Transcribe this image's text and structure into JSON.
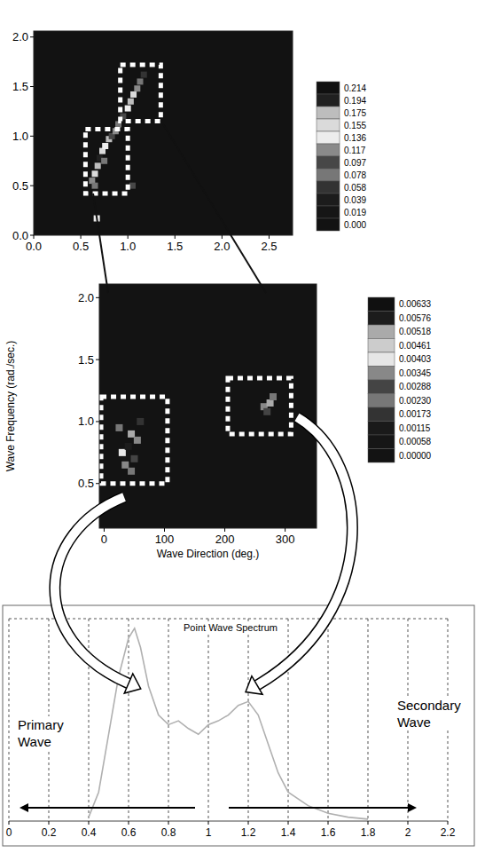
{
  "chart_data": [
    {
      "type": "heatmap",
      "xlim": [
        0,
        2.75
      ],
      "ylim": [
        0,
        2.06
      ],
      "xticks": [
        {
          "value": 0,
          "label": "0.0"
        },
        0.5,
        {
          "value": 1,
          "label": "1.0"
        },
        1.5,
        {
          "value": 2,
          "label": "2.0"
        },
        2.5
      ],
      "yticks": [
        {
          "value": 0,
          "label": "0.0"
        },
        0.5,
        {
          "value": 1,
          "label": "1.0"
        },
        1.5,
        {
          "value": 2,
          "label": "2.0"
        }
      ],
      "colorbar_ticks": [
        0.214,
        0.194,
        0.175,
        0.155,
        0.136,
        0.117,
        0.097,
        0.078,
        0.058,
        0.039,
        0.019,
        {
          "value": 0,
          "label": "0.000"
        }
      ],
      "colors": [
        "#101010",
        "#202020",
        "#bdbdbd",
        "#dadada",
        "#ededed",
        "#8a8a8a",
        "#474747",
        "#777777",
        "#333333",
        "#1c1c1c",
        "#161616",
        "#121212"
      ],
      "cells": [
        [
          0.62,
          0.55,
          0.12
        ],
        [
          0.65,
          0.62,
          0.16
        ],
        [
          0.68,
          0.7,
          0.19
        ],
        [
          0.7,
          0.78,
          0.2
        ],
        [
          0.73,
          0.85,
          0.17
        ],
        [
          0.76,
          0.9,
          0.14
        ],
        [
          0.8,
          0.97,
          0.18
        ],
        [
          0.83,
          1.0,
          0.1
        ],
        [
          0.87,
          1.05,
          0.13
        ],
        [
          0.9,
          1.12,
          0.08
        ],
        [
          0.95,
          1.2,
          0.11
        ],
        [
          1.0,
          1.28,
          0.15
        ],
        [
          1.03,
          1.35,
          0.19
        ],
        [
          1.06,
          1.42,
          0.16
        ],
        [
          1.1,
          1.48,
          0.12
        ],
        [
          1.13,
          1.55,
          0.09
        ],
        [
          1.17,
          1.62,
          0.07
        ],
        [
          0.75,
          0.75,
          0.09
        ],
        [
          0.65,
          0.5,
          0.08
        ],
        [
          0.67,
          0.17,
          0.14
        ],
        [
          1.05,
          0.5,
          0.1
        ]
      ]
    },
    {
      "type": "heatmap",
      "x_label": "Wave Direction (deg.)",
      "y_label": "Wave Frequency (rad./sec.)",
      "xlim": [
        -8,
        352
      ],
      "ylim": [
        0.14,
        2.11
      ],
      "xticks": [
        0,
        100,
        200,
        300
      ],
      "yticks": [
        0.5,
        {
          "value": 1,
          "label": "1.0"
        },
        1.5,
        {
          "value": 2,
          "label": "2.0"
        }
      ],
      "colorbar_ticks": [
        0.00633,
        0.00576,
        0.00518,
        0.00461,
        0.00403,
        0.00345,
        0.00288,
        {
          "value": 0.0023,
          "label": "0.00230"
        },
        0.00173,
        0.00115,
        0.00058,
        {
          "value": 0,
          "label": "0.00000"
        }
      ],
      "colors": [
        "#101010",
        "#1c1c1c",
        "#aaaaaa",
        "#cccccc",
        "#e6e6e6",
        "#888888",
        "#444444",
        "#777777",
        "#333333",
        "#1a1a1a",
        "#161616",
        "#131313"
      ],
      "cells": [
        [
          30,
          0.75,
          0.0045
        ],
        [
          40,
          0.8,
          0.006
        ],
        [
          45,
          0.9,
          0.0052
        ],
        [
          35,
          0.65,
          0.004
        ],
        [
          50,
          0.7,
          0.003
        ],
        [
          55,
          0.85,
          0.0035
        ],
        [
          25,
          0.95,
          0.0025
        ],
        [
          60,
          1.0,
          0.002
        ],
        [
          45,
          0.6,
          0.0028
        ],
        [
          265,
          1.12,
          0.004
        ],
        [
          275,
          1.15,
          0.0055
        ],
        [
          270,
          1.08,
          0.003
        ],
        [
          280,
          1.2,
          0.0024
        ]
      ]
    },
    {
      "type": "line",
      "title": "Point Wave Spectrum",
      "x": [
        0.4,
        0.45,
        0.5,
        0.55,
        0.6,
        0.63,
        0.66,
        0.7,
        0.75,
        0.8,
        0.85,
        0.9,
        0.95,
        1.0,
        1.05,
        1.1,
        1.15,
        1.2,
        1.25,
        1.3,
        1.35,
        1.4,
        1.5,
        1.6,
        1.7,
        1.8
      ],
      "values": [
        0.02,
        0.15,
        0.45,
        0.75,
        0.95,
        1.0,
        0.9,
        0.7,
        0.55,
        0.5,
        0.52,
        0.48,
        0.45,
        0.5,
        0.52,
        0.55,
        0.6,
        0.62,
        0.55,
        0.4,
        0.25,
        0.15,
        0.08,
        0.04,
        0.02,
        0.01
      ],
      "color": "#b0b0b0",
      "xlim": [
        0,
        2.2
      ],
      "ylim": [
        0,
        1.05
      ],
      "xticks": [
        0,
        0.2,
        0.4,
        0.6,
        0.8,
        1,
        1.2,
        1.4,
        1.6,
        1.8,
        2,
        2.2
      ],
      "grid": true,
      "tick_labels": "x",
      "annotations": [
        "Primary Wave",
        "Secondary Wave"
      ]
    }
  ]
}
